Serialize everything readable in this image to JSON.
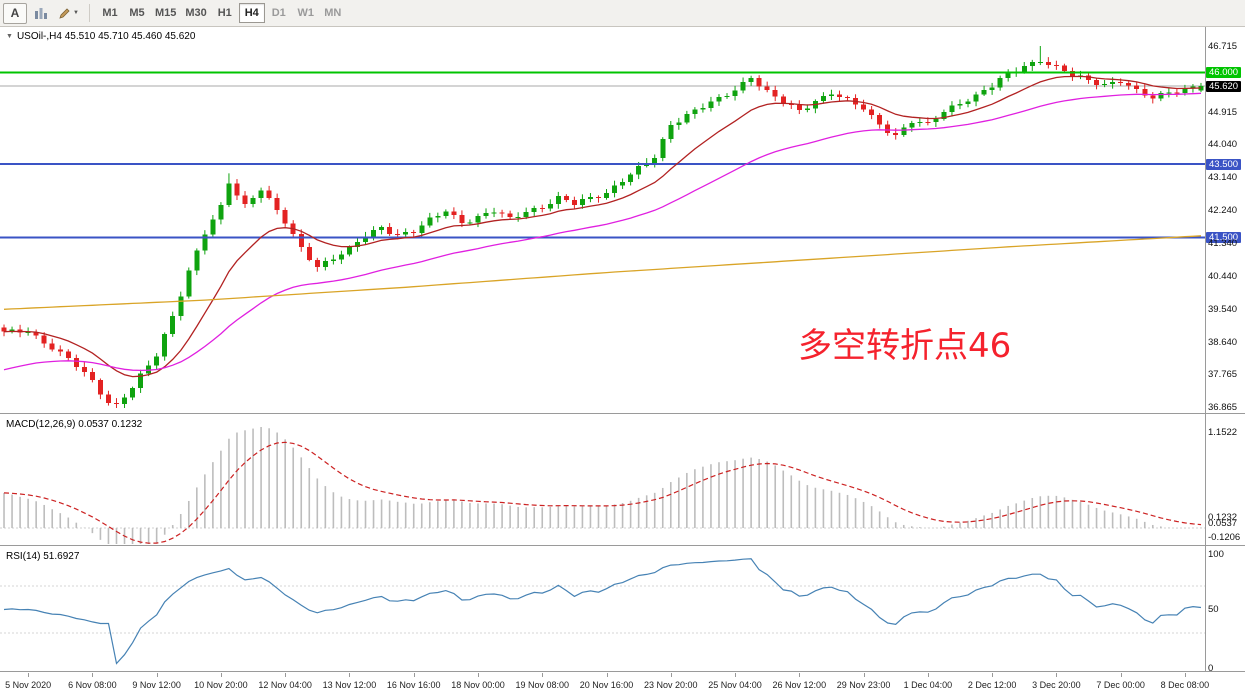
{
  "toolbar": {
    "tools": [
      {
        "label": "A",
        "name": "text-tool"
      },
      {
        "name": "new-chart-tool"
      },
      {
        "name": "drawing-tool"
      }
    ],
    "timeframes": [
      {
        "label": "M1"
      },
      {
        "label": "M5"
      },
      {
        "label": "M15"
      },
      {
        "label": "M30"
      },
      {
        "label": "H1"
      },
      {
        "label": "H4",
        "active": true
      },
      {
        "label": "D1",
        "dim": true
      },
      {
        "label": "W1",
        "dim": true
      },
      {
        "label": "MN",
        "dim": true
      }
    ]
  },
  "main_panel": {
    "title": "USOil-,H4 45.510 45.710 45.460 45.620",
    "annotation": {
      "text": "多空转折点46",
      "color": "#f5222d"
    },
    "axis_labels": [
      {
        "text": "46.715",
        "price": 46.715
      },
      {
        "text": "46.000",
        "price": 46.0,
        "badge": "#00c400"
      },
      {
        "text": "45.620",
        "price": 45.62,
        "badge": "#000000"
      },
      {
        "text": "44.915",
        "price": 44.915
      },
      {
        "text": "44.040",
        "price": 44.04
      },
      {
        "text": "43.500",
        "price": 43.5,
        "badge": "#3a53c5"
      },
      {
        "text": "43.140",
        "price": 43.14
      },
      {
        "text": "42.240",
        "price": 42.24
      },
      {
        "text": "41.500",
        "price": 41.5,
        "badge": "#3a53c5"
      },
      {
        "text": "41.340",
        "price": 41.34
      },
      {
        "text": "40.440",
        "price": 40.44
      },
      {
        "text": "39.540",
        "price": 39.54
      },
      {
        "text": "38.640",
        "price": 38.64
      },
      {
        "text": "37.765",
        "price": 37.765
      },
      {
        "text": "36.865",
        "price": 36.865
      }
    ]
  },
  "macd_panel": {
    "title": "MACD(12,26,9) 0.0537 0.1232",
    "axis_labels": [
      {
        "text": "1.1522",
        "value": 1.1522
      },
      {
        "text": "0.1232",
        "value": 0.1232
      },
      {
        "text": "0.0537",
        "value": 0.0537
      },
      {
        "text": "-0.1206",
        "value": -0.1206
      }
    ]
  },
  "rsi_panel": {
    "title": "RSI(14) 51.6927",
    "axis_labels": [
      {
        "text": "100",
        "value": 100
      },
      {
        "text": "50",
        "value": 50
      },
      {
        "text": "0",
        "value": 0
      }
    ]
  },
  "time_axis": {
    "labels": [
      {
        "text": "5 Nov 2020",
        "bar": 3
      },
      {
        "text": "6 Nov 08:00",
        "bar": 11
      },
      {
        "text": "9 Nov 12:00",
        "bar": 19
      },
      {
        "text": "10 Nov 20:00",
        "bar": 27
      },
      {
        "text": "12 Nov 04:00",
        "bar": 35
      },
      {
        "text": "13 Nov 12:00",
        "bar": 43
      },
      {
        "text": "16 Nov 16:00",
        "bar": 51
      },
      {
        "text": "18 Nov 00:00",
        "bar": 59
      },
      {
        "text": "19 Nov 08:00",
        "bar": 67
      },
      {
        "text": "20 Nov 16:00",
        "bar": 75
      },
      {
        "text": "23 Nov 20:00",
        "bar": 83
      },
      {
        "text": "25 Nov 04:00",
        "bar": 91
      },
      {
        "text": "26 Nov 12:00",
        "bar": 99
      },
      {
        "text": "29 Nov 23:00",
        "bar": 107
      },
      {
        "text": "1 Dec 04:00",
        "bar": 115
      },
      {
        "text": "2 Dec 12:00",
        "bar": 123
      },
      {
        "text": "3 Dec 20:00",
        "bar": 131
      },
      {
        "text": "7 Dec 00:00",
        "bar": 139
      },
      {
        "text": "8 Dec 08:00",
        "bar": 147
      }
    ]
  },
  "chart_data": {
    "type": "candlestick",
    "symbol": "USOil-",
    "timeframe": "H4",
    "bars": 150,
    "ohlc_current": {
      "open": 45.51,
      "high": 45.71,
      "low": 45.46,
      "close": 45.62
    },
    "current_price": 45.62,
    "price_range": {
      "low": 36.865,
      "high": 46.715
    },
    "close_path_anchors": [
      [
        0,
        38.9
      ],
      [
        3,
        39.0
      ],
      [
        6,
        38.5
      ],
      [
        9,
        38.0
      ],
      [
        11,
        37.6
      ],
      [
        13,
        37.05
      ],
      [
        14,
        36.95
      ],
      [
        16,
        37.4
      ],
      [
        19,
        38.3
      ],
      [
        21,
        39.4
      ],
      [
        23,
        40.6
      ],
      [
        25,
        41.6
      ],
      [
        27,
        42.3
      ],
      [
        28,
        43.0
      ],
      [
        30,
        42.4
      ],
      [
        32,
        42.85
      ],
      [
        34,
        42.2
      ],
      [
        35,
        41.9
      ],
      [
        37,
        41.2
      ],
      [
        39,
        40.75
      ],
      [
        41,
        40.95
      ],
      [
        43,
        41.15
      ],
      [
        45,
        41.55
      ],
      [
        47,
        41.8
      ],
      [
        49,
        41.6
      ],
      [
        51,
        41.65
      ],
      [
        53,
        41.95
      ],
      [
        55,
        42.25
      ],
      [
        57,
        41.95
      ],
      [
        59,
        42.05
      ],
      [
        61,
        42.2
      ],
      [
        63,
        42.0
      ],
      [
        65,
        42.25
      ],
      [
        67,
        42.35
      ],
      [
        69,
        42.55
      ],
      [
        71,
        42.4
      ],
      [
        73,
        42.6
      ],
      [
        75,
        42.75
      ],
      [
        77,
        43.05
      ],
      [
        79,
        43.35
      ],
      [
        81,
        43.7
      ],
      [
        83,
        44.6
      ],
      [
        85,
        44.85
      ],
      [
        87,
        45.05
      ],
      [
        89,
        45.25
      ],
      [
        91,
        45.55
      ],
      [
        93,
        45.9
      ],
      [
        95,
        45.45
      ],
      [
        97,
        45.15
      ],
      [
        99,
        44.95
      ],
      [
        101,
        45.25
      ],
      [
        103,
        45.45
      ],
      [
        105,
        45.2
      ],
      [
        107,
        45.0
      ],
      [
        109,
        44.6
      ],
      [
        111,
        44.3
      ],
      [
        113,
        44.65
      ],
      [
        115,
        44.55
      ],
      [
        117,
        44.95
      ],
      [
        119,
        45.2
      ],
      [
        121,
        45.35
      ],
      [
        123,
        45.6
      ],
      [
        125,
        45.95
      ],
      [
        127,
        46.2
      ],
      [
        129,
        46.35
      ],
      [
        131,
        46.1
      ],
      [
        133,
        45.9
      ],
      [
        135,
        45.8
      ],
      [
        137,
        45.7
      ],
      [
        139,
        45.75
      ],
      [
        141,
        45.45
      ],
      [
        143,
        45.3
      ],
      [
        145,
        45.5
      ],
      [
        147,
        45.55
      ],
      [
        149,
        45.62
      ]
    ],
    "levels": [
      {
        "price": 46.0,
        "color": "#00c400"
      },
      {
        "price": 43.5,
        "color": "#3a53c5"
      },
      {
        "price": 41.5,
        "color": "#3a53c5"
      }
    ],
    "colors": {
      "up": "#0fa30f",
      "down": "#e32222"
    },
    "moving_averages": [
      {
        "name": "fast-ma",
        "type": "ema",
        "period": 13,
        "color": "#b22222"
      },
      {
        "name": "mid-ma",
        "type": "ema",
        "period": 40,
        "seed": 37.85,
        "color": "#e020e0"
      },
      {
        "name": "slow-ma",
        "type": "anchors",
        "color": "#d9a427",
        "anchors": [
          [
            0,
            39.55
          ],
          [
            25,
            39.8
          ],
          [
            50,
            40.15
          ],
          [
            75,
            40.55
          ],
          [
            100,
            40.9
          ],
          [
            125,
            41.25
          ],
          [
            149,
            41.55
          ]
        ]
      }
    ],
    "macd": {
      "fast": 12,
      "slow": 26,
      "signal": 9,
      "current_main": 0.0537,
      "current_signal": 0.1232,
      "axis_max": 1.1522,
      "histogram_color": "#bdbdbd",
      "signal_color": "#cc2222"
    },
    "rsi": {
      "period": 14,
      "current": 51.6927,
      "color": "#4682b4",
      "levels": [
        30,
        70
      ]
    }
  }
}
